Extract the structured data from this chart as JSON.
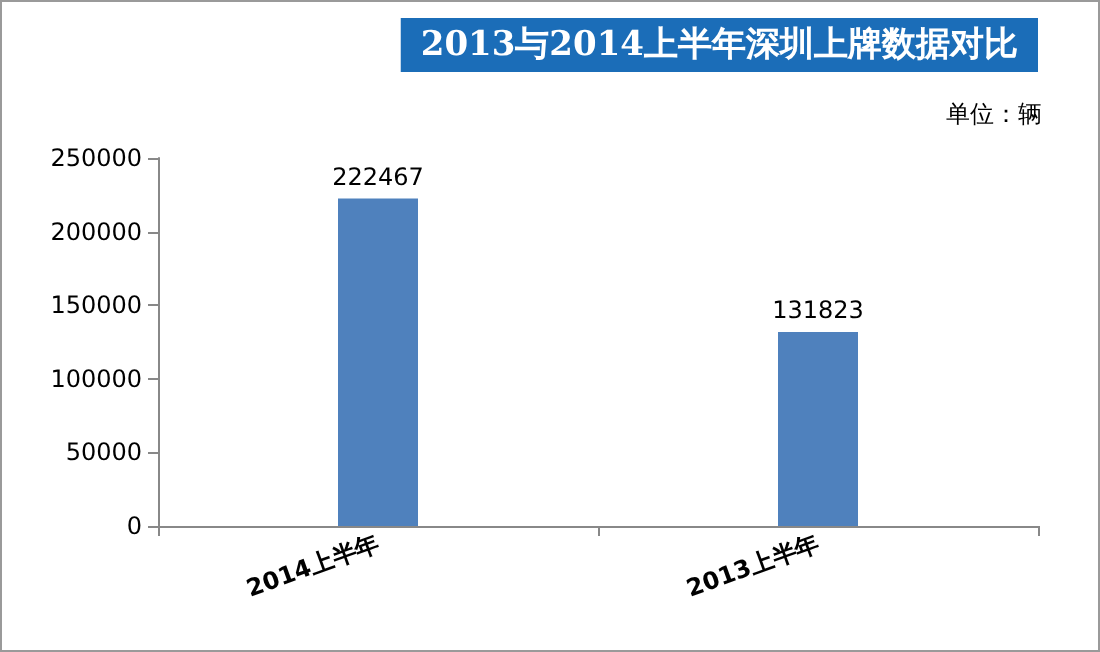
{
  "chart_data": {
    "type": "bar",
    "title": "2013与2014上半年深圳上牌数据对比",
    "categories": [
      "2014上半年",
      "2013上半年"
    ],
    "values": [
      222467,
      131823
    ],
    "color": "#4f81bd",
    "ylim": [
      0,
      250000
    ],
    "yticks": [
      0,
      50000,
      100000,
      150000,
      200000,
      250000
    ],
    "grid": false,
    "data_labels": true,
    "annotations": [
      "单位：辆"
    ]
  }
}
